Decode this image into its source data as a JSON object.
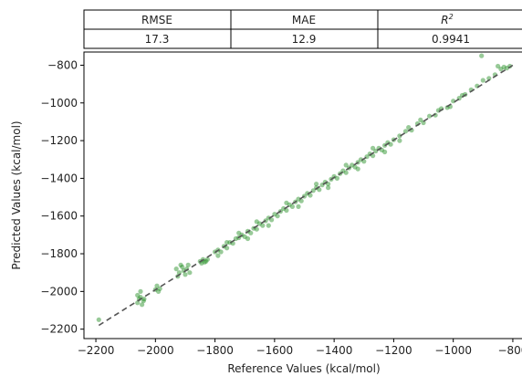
{
  "metrics_table": {
    "headers": {
      "rmse": "RMSE",
      "mae": "MAE",
      "r2_base": "R",
      "r2_sup": "2"
    },
    "values": {
      "rmse": "17.3",
      "mae": "12.9",
      "r2": "0.9941"
    }
  },
  "chart_data": {
    "type": "scatter",
    "xlabel": "Reference Values (kcal/mol)",
    "ylabel": "Predicted Values (kcal/mol)",
    "xlim": [
      -2240,
      -760
    ],
    "ylim": [
      -2250,
      -730
    ],
    "xticks": [
      -2200,
      -2000,
      -1800,
      -1600,
      -1400,
      -1200,
      -1000,
      -800
    ],
    "yticks": [
      -2200,
      -2000,
      -1800,
      -1600,
      -1400,
      -1200,
      -1000,
      -800
    ],
    "xtick_labels": [
      "−2200",
      "−2000",
      "−1800",
      "−1600",
      "−1400",
      "−1200",
      "−1000",
      "−800"
    ],
    "ytick_labels": [
      "−2200",
      "−2000",
      "−1800",
      "−1600",
      "−1400",
      "−1200",
      "−1000",
      "−800"
    ],
    "grid": false,
    "point_color": "#1a8a1a",
    "line_color": "#555555",
    "reference_line": {
      "style": "dashed",
      "x": [
        -2190,
        -800
      ],
      "y": [
        -2180,
        -800
      ]
    },
    "points": [
      {
        "x": -2190,
        "y": -2150
      },
      {
        "x": -2060,
        "y": -2060
      },
      {
        "x": -2055,
        "y": -2040
      },
      {
        "x": -2050,
        "y": -2030
      },
      {
        "x": -2045,
        "y": -2070
      },
      {
        "x": -2060,
        "y": -2020
      },
      {
        "x": -2040,
        "y": -2050
      },
      {
        "x": -2050,
        "y": -2000
      },
      {
        "x": -2038,
        "y": -2040
      },
      {
        "x": -2000,
        "y": -1990
      },
      {
        "x": -1995,
        "y": -1970
      },
      {
        "x": -1990,
        "y": -2000
      },
      {
        "x": -1985,
        "y": -1985
      },
      {
        "x": -1930,
        "y": -1880
      },
      {
        "x": -1920,
        "y": -1900
      },
      {
        "x": -1910,
        "y": -1870
      },
      {
        "x": -1905,
        "y": -1890
      },
      {
        "x": -1900,
        "y": -1910
      },
      {
        "x": -1895,
        "y": -1880
      },
      {
        "x": -1890,
        "y": -1860
      },
      {
        "x": -1885,
        "y": -1900
      },
      {
        "x": -1925,
        "y": -1920
      },
      {
        "x": -1915,
        "y": -1860
      },
      {
        "x": -1850,
        "y": -1840
      },
      {
        "x": -1845,
        "y": -1850
      },
      {
        "x": -1840,
        "y": -1830
      },
      {
        "x": -1835,
        "y": -1845
      },
      {
        "x": -1830,
        "y": -1840
      },
      {
        "x": -1825,
        "y": -1830
      },
      {
        "x": -1800,
        "y": -1790
      },
      {
        "x": -1790,
        "y": -1780
      },
      {
        "x": -1780,
        "y": -1790
      },
      {
        "x": -1770,
        "y": -1760
      },
      {
        "x": -1760,
        "y": -1770
      },
      {
        "x": -1750,
        "y": -1740
      },
      {
        "x": -1740,
        "y": -1745
      },
      {
        "x": -1730,
        "y": -1720
      },
      {
        "x": -1720,
        "y": -1715
      },
      {
        "x": -1710,
        "y": -1700
      },
      {
        "x": -1700,
        "y": -1710
      },
      {
        "x": -1690,
        "y": -1680
      },
      {
        "x": -1680,
        "y": -1690
      },
      {
        "x": -1670,
        "y": -1665
      },
      {
        "x": -1660,
        "y": -1670
      },
      {
        "x": -1650,
        "y": -1640
      },
      {
        "x": -1640,
        "y": -1650
      },
      {
        "x": -1630,
        "y": -1625
      },
      {
        "x": -1620,
        "y": -1610
      },
      {
        "x": -1610,
        "y": -1620
      },
      {
        "x": -1600,
        "y": -1590
      },
      {
        "x": -1590,
        "y": -1600
      },
      {
        "x": -1580,
        "y": -1575
      },
      {
        "x": -1570,
        "y": -1560
      },
      {
        "x": -1560,
        "y": -1570
      },
      {
        "x": -1550,
        "y": -1540
      },
      {
        "x": -1540,
        "y": -1550
      },
      {
        "x": -1530,
        "y": -1525
      },
      {
        "x": -1520,
        "y": -1510
      },
      {
        "x": -1510,
        "y": -1520
      },
      {
        "x": -1500,
        "y": -1495
      },
      {
        "x": -1490,
        "y": -1480
      },
      {
        "x": -1480,
        "y": -1490
      },
      {
        "x": -1470,
        "y": -1465
      },
      {
        "x": -1460,
        "y": -1450
      },
      {
        "x": -1450,
        "y": -1460
      },
      {
        "x": -1440,
        "y": -1435
      },
      {
        "x": -1430,
        "y": -1420
      },
      {
        "x": -1420,
        "y": -1430
      },
      {
        "x": -1410,
        "y": -1405
      },
      {
        "x": -1400,
        "y": -1390
      },
      {
        "x": -1390,
        "y": -1400
      },
      {
        "x": -1380,
        "y": -1375
      },
      {
        "x": -1370,
        "y": -1360
      },
      {
        "x": -1360,
        "y": -1370
      },
      {
        "x": -1350,
        "y": -1345
      },
      {
        "x": -1340,
        "y": -1330
      },
      {
        "x": -1330,
        "y": -1340
      },
      {
        "x": -1320,
        "y": -1315
      },
      {
        "x": -1310,
        "y": -1300
      },
      {
        "x": -1300,
        "y": -1310
      },
      {
        "x": -1290,
        "y": -1285
      },
      {
        "x": -1280,
        "y": -1270
      },
      {
        "x": -1270,
        "y": -1280
      },
      {
        "x": -1260,
        "y": -1255
      },
      {
        "x": -1250,
        "y": -1240
      },
      {
        "x": -1240,
        "y": -1250
      },
      {
        "x": -1230,
        "y": -1225
      },
      {
        "x": -1220,
        "y": -1210
      },
      {
        "x": -1210,
        "y": -1220
      },
      {
        "x": -1200,
        "y": -1195
      },
      {
        "x": -1180,
        "y": -1175
      },
      {
        "x": -1160,
        "y": -1150
      },
      {
        "x": -1140,
        "y": -1145
      },
      {
        "x": -1120,
        "y": -1110
      },
      {
        "x": -1100,
        "y": -1105
      },
      {
        "x": -1080,
        "y": -1070
      },
      {
        "x": -1060,
        "y": -1065
      },
      {
        "x": -1040,
        "y": -1030
      },
      {
        "x": -1020,
        "y": -1025
      },
      {
        "x": -1000,
        "y": -990
      },
      {
        "x": -980,
        "y": -975
      },
      {
        "x": -960,
        "y": -955
      },
      {
        "x": -940,
        "y": -930
      },
      {
        "x": -920,
        "y": -910
      },
      {
        "x": -900,
        "y": -880
      },
      {
        "x": -880,
        "y": -870
      },
      {
        "x": -860,
        "y": -850
      },
      {
        "x": -840,
        "y": -820
      },
      {
        "x": -830,
        "y": -810
      },
      {
        "x": -820,
        "y": -815
      },
      {
        "x": -810,
        "y": -805
      },
      {
        "x": -850,
        "y": -805
      },
      {
        "x": -905,
        "y": -750
      },
      {
        "x": -1660,
        "y": -1630
      },
      {
        "x": -1620,
        "y": -1650
      },
      {
        "x": -1560,
        "y": -1530
      },
      {
        "x": -1520,
        "y": -1550
      },
      {
        "x": -1460,
        "y": -1430
      },
      {
        "x": -1420,
        "y": -1450
      },
      {
        "x": -1360,
        "y": -1330
      },
      {
        "x": -1320,
        "y": -1350
      },
      {
        "x": -1270,
        "y": -1240
      },
      {
        "x": -1230,
        "y": -1260
      },
      {
        "x": -1720,
        "y": -1690
      },
      {
        "x": -1690,
        "y": -1720
      },
      {
        "x": -1790,
        "y": -1810
      },
      {
        "x": -1760,
        "y": -1740
      },
      {
        "x": -1180,
        "y": -1200
      },
      {
        "x": -1150,
        "y": -1130
      },
      {
        "x": -1110,
        "y": -1090
      },
      {
        "x": -1050,
        "y": -1040
      },
      {
        "x": -1010,
        "y": -1020
      },
      {
        "x": -970,
        "y": -960
      }
    ]
  }
}
